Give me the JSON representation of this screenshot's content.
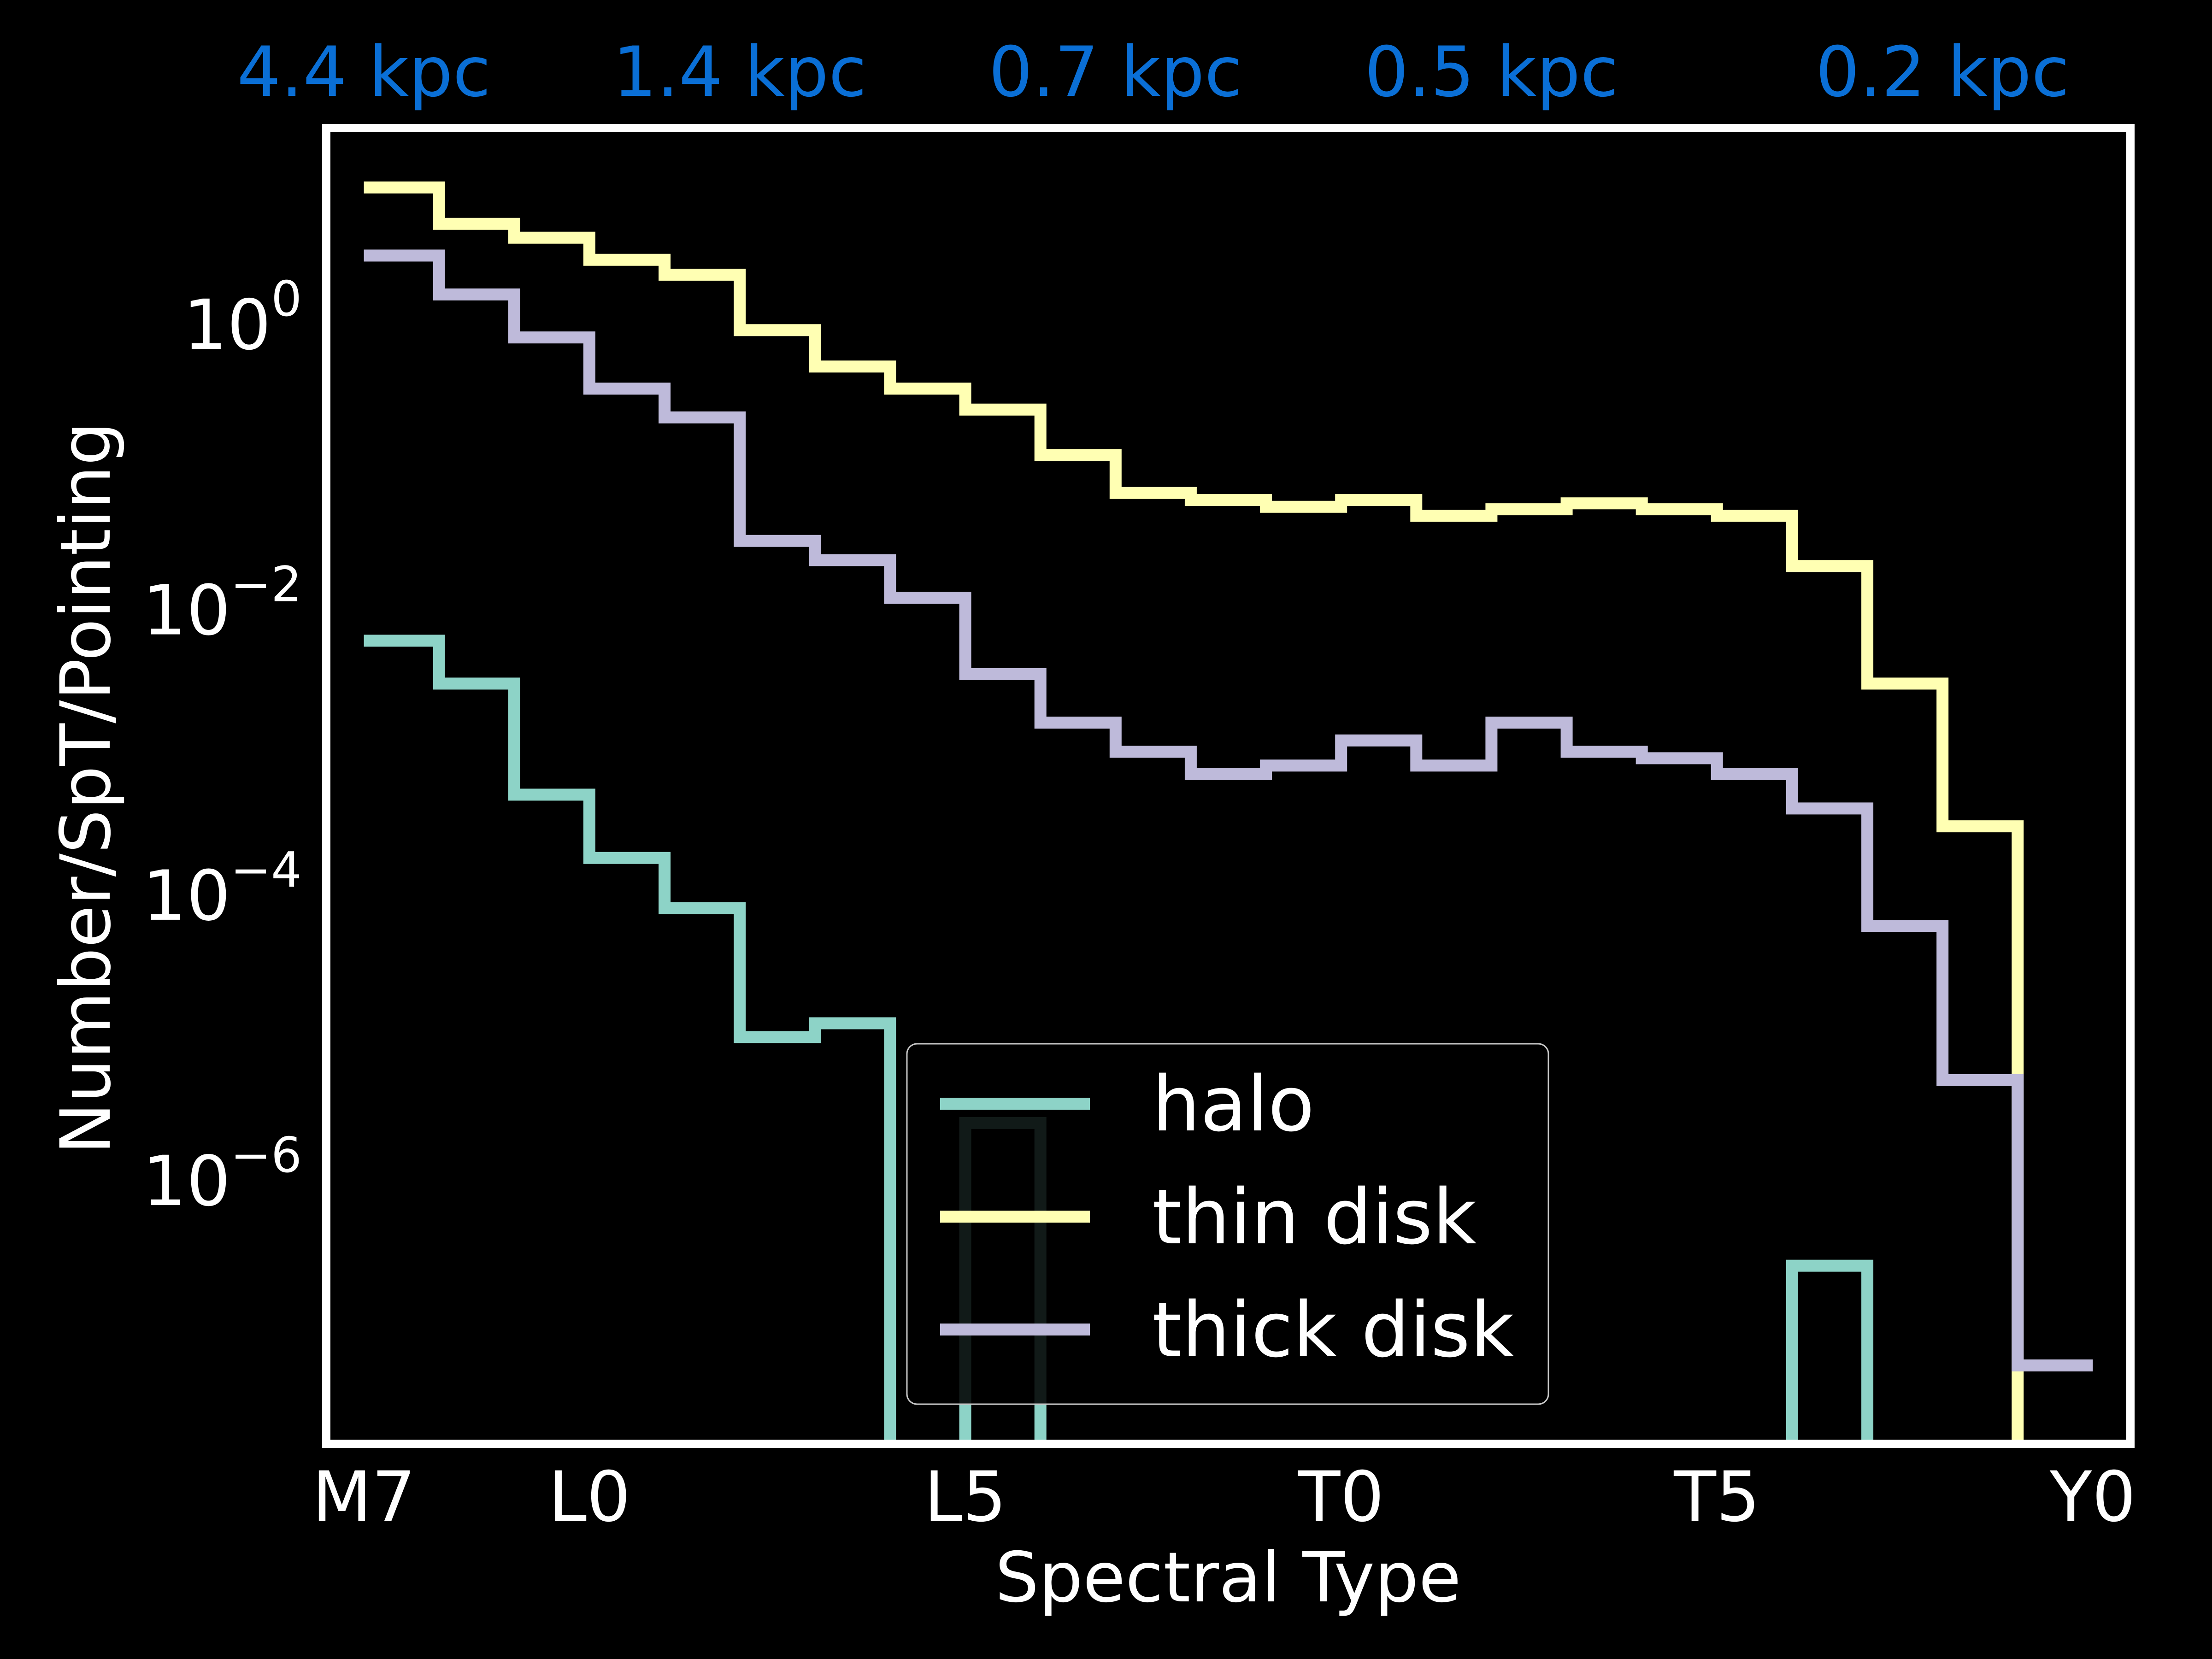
{
  "chart_data": {
    "type": "line",
    "style": "step",
    "yscale": "log",
    "xlabel": "Spectral Type",
    "ylabel": "Number/SpT/Pointing",
    "x_tick_labels": [
      "M7",
      "L0",
      "L5",
      "T0",
      "T5",
      "Y0"
    ],
    "x_tick_positions": [
      0,
      3,
      8,
      13,
      18,
      23
    ],
    "y_ticks": [
      {
        "base": "10",
        "exp": "0",
        "value": 1
      },
      {
        "base": "10",
        "exp": "−2",
        "value": 0.01
      },
      {
        "base": "10",
        "exp": "−4",
        "value": 0.0001
      },
      {
        "base": "10",
        "exp": "−6",
        "value": 1e-06
      }
    ],
    "top_axis_labels": [
      {
        "x": 0,
        "label": "4.4 kpc"
      },
      {
        "x": 5,
        "label": "1.4 kpc"
      },
      {
        "x": 10,
        "label": "0.7 kpc"
      },
      {
        "x": 15,
        "label": "0.5 kpc"
      },
      {
        "x": 21,
        "label": "0.2 kpc"
      }
    ],
    "xlim": [
      -0.5,
      23.5
    ],
    "ylim_log10": [
      -7.85,
      1.37
    ],
    "grid": false,
    "legend_position": "lower center",
    "series": [
      {
        "name": "halo",
        "color": "#8dd3c7",
        "values": [
          0.006,
          0.003,
          0.0005,
          0.00018,
          8e-05,
          1e-05,
          1.25e-05,
          null,
          2.5e-06,
          null,
          null,
          null,
          null,
          null,
          null,
          null,
          null,
          null,
          null,
          2.5e-07,
          null,
          null,
          null
        ]
      },
      {
        "name": "thin disk",
        "color": "#ffffb3",
        "values": [
          9.0,
          5.0,
          4.0,
          2.8,
          2.2,
          0.9,
          0.5,
          0.35,
          0.25,
          0.12,
          0.065,
          0.058,
          0.052,
          0.058,
          0.045,
          0.05,
          0.055,
          0.05,
          0.045,
          0.02,
          0.003,
          0.0003,
          1e-09
        ]
      },
      {
        "name": "thick disk",
        "color": "#bebada",
        "values": [
          3.0,
          1.6,
          0.8,
          0.35,
          0.22,
          0.03,
          0.022,
          0.012,
          0.0035,
          0.0016,
          0.001,
          0.0007,
          0.0008,
          0.0012,
          0.0008,
          0.0016,
          0.001,
          0.0009,
          0.0007,
          0.0004,
          6e-05,
          5e-06,
          5e-08
        ]
      }
    ]
  }
}
